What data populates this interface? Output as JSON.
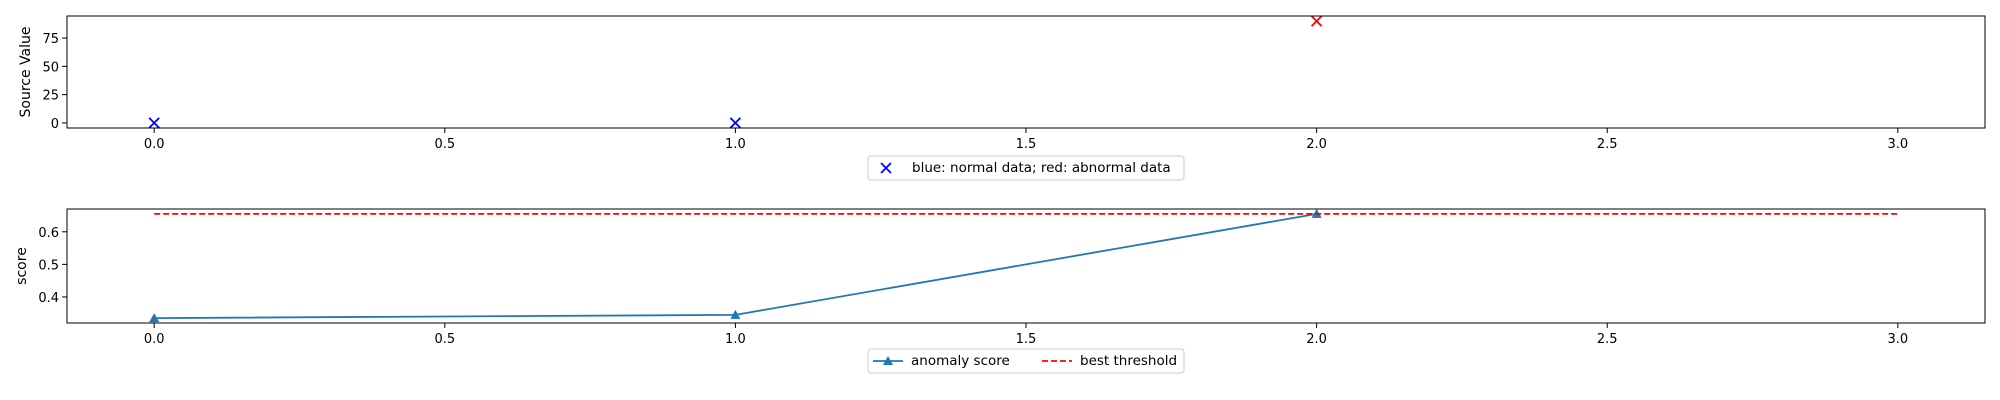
{
  "chart_data": [
    {
      "type": "scatter",
      "title": "",
      "xlabel": "",
      "ylabel": "Source Value",
      "xlim": [
        -0.15,
        3.15
      ],
      "ylim": [
        -4.5,
        94.5
      ],
      "xticks": [
        0.0,
        0.5,
        1.0,
        1.5,
        2.0,
        2.5,
        3.0
      ],
      "xtick_labels": [
        "0.0",
        "0.5",
        "1.0",
        "1.5",
        "2.0",
        "2.5",
        "3.0"
      ],
      "yticks": [
        0,
        25,
        50,
        75
      ],
      "ytick_labels": [
        "0",
        "25",
        "50",
        "75"
      ],
      "grid": false,
      "marker": "x",
      "points": [
        {
          "x": 0,
          "y": 0,
          "color": "#0000ff"
        },
        {
          "x": 1,
          "y": 0,
          "color": "#0000ff"
        },
        {
          "x": 2,
          "y": 90,
          "color": "#ff0000"
        }
      ],
      "legend": {
        "placement": "below",
        "entries": [
          {
            "label": "blue: normal data; red: abnormal data",
            "color": "#0000ff",
            "marker": "x"
          }
        ]
      }
    },
    {
      "type": "line",
      "title": "",
      "xlabel": "",
      "ylabel": "score",
      "xlim": [
        -0.15,
        3.15
      ],
      "ylim": [
        0.32,
        0.67
      ],
      "xticks": [
        0.0,
        0.5,
        1.0,
        1.5,
        2.0,
        2.5,
        3.0
      ],
      "xtick_labels": [
        "0.0",
        "0.5",
        "1.0",
        "1.5",
        "2.0",
        "2.5",
        "3.0"
      ],
      "yticks": [
        0.4,
        0.5,
        0.6
      ],
      "ytick_labels": [
        "0.4",
        "0.5",
        "0.6"
      ],
      "grid": false,
      "series": [
        {
          "name": "anomaly score",
          "x": [
            0,
            1,
            2
          ],
          "y": [
            0.335,
            0.345,
            0.655
          ],
          "color": "#1f77b4",
          "style": "solid",
          "marker": "triangle"
        },
        {
          "name": "best threshold",
          "x": [
            0,
            3
          ],
          "y": [
            0.655,
            0.655
          ],
          "color": "#ff0000",
          "style": "dashed",
          "marker": "none"
        }
      ],
      "legend": {
        "placement": "below",
        "entries": [
          {
            "label": "anomaly score",
            "color": "#1f77b4",
            "style": "solid",
            "marker": "triangle"
          },
          {
            "label": "best threshold",
            "color": "#ff0000",
            "style": "dashed",
            "marker": "none"
          }
        ]
      }
    }
  ]
}
